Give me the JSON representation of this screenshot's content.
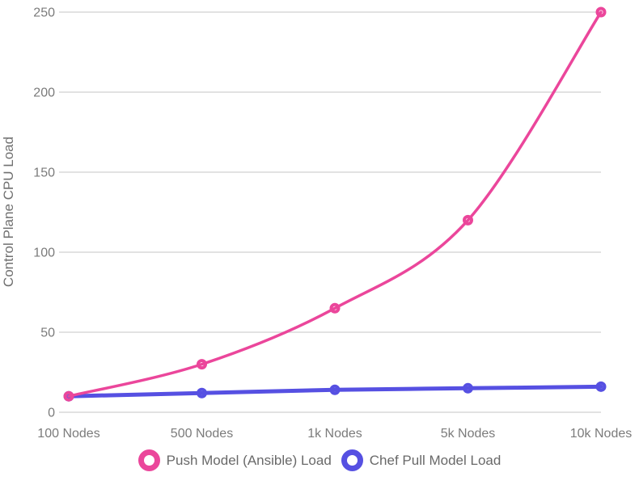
{
  "chart_data": {
    "type": "line",
    "title": "",
    "categories": [
      "100 Nodes",
      "500 Nodes",
      "1k Nodes",
      "5k Nodes",
      "10k Nodes"
    ],
    "series": [
      {
        "name": "Push Model (Ansible) Load",
        "values": [
          10,
          30,
          65,
          120,
          250
        ],
        "color": "#eb469b",
        "line_width": 3.5
      },
      {
        "name": "Chef Pull Model Load",
        "values": [
          10,
          12,
          14,
          15,
          16
        ],
        "color": "#5650e2",
        "line_width": 5
      }
    ],
    "xlabel": "",
    "ylabel": "Control Plane CPU Load",
    "ylim": [
      0,
      250
    ],
    "yticks": [
      0,
      50,
      100,
      150,
      200,
      250
    ],
    "grid": "horizontal",
    "legend_position": "bottom",
    "curve": "smooth",
    "point_style": "hollow-circle"
  },
  "colors": {
    "background": "#ffffff",
    "gridline": "#d8d8d8",
    "tick_label": "#7b7b7b",
    "axis_title": "#707070",
    "legend_label": "#696969"
  }
}
